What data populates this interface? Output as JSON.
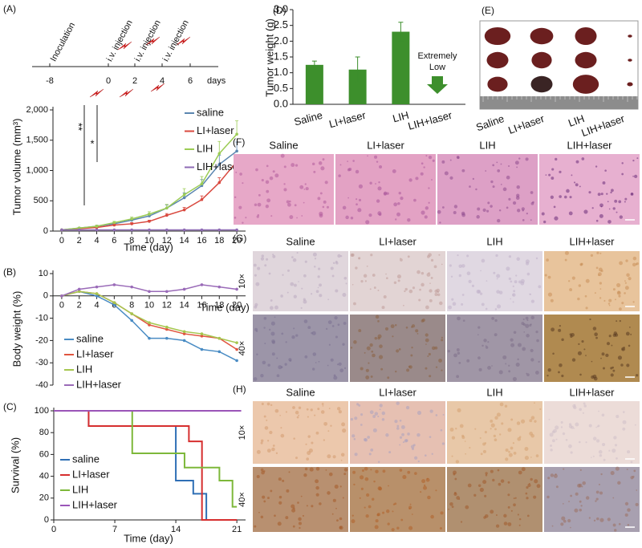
{
  "timeline": {
    "panel": "(A)",
    "events": [
      "Inoculation",
      "i.v. injection",
      "i.v. injection",
      "i.v. injection"
    ],
    "ticks": [
      -8,
      0,
      2,
      4,
      6
    ],
    "unit": "days"
  },
  "chart_data": [
    {
      "type": "line",
      "xlabel": "Time (day)",
      "ylabel": "Tumor volume (mm³)",
      "x": [
        0,
        2,
        4,
        6,
        8,
        10,
        12,
        14,
        16,
        18,
        20
      ],
      "xlim": [
        -1,
        21
      ],
      "xticks": [
        0,
        2,
        4,
        6,
        8,
        10,
        12,
        14,
        16,
        18,
        20
      ],
      "ylim": [
        0,
        2000
      ],
      "yticks": [
        0,
        500,
        {
          "value": 1000,
          "label": "1,000"
        },
        {
          "value": 1500,
          "label": "1,500"
        },
        {
          "value": 2000,
          "label": "2,000"
        }
      ],
      "annotations": [
        "**",
        "*"
      ],
      "legend": "upper right",
      "series": [
        {
          "name": "saline",
          "color": "#5b86b0",
          "values": [
            20,
            50,
            80,
            120,
            180,
            250,
            380,
            550,
            750,
            1100,
            1320
          ],
          "errors": [
            5,
            10,
            15,
            20,
            30,
            40,
            50,
            80,
            100,
            150,
            150
          ]
        },
        {
          "name": "LI+laser",
          "color": "#d9493f",
          "values": [
            20,
            40,
            60,
            100,
            120,
            160,
            260,
            350,
            520,
            800,
            1150
          ],
          "errors": [
            5,
            10,
            10,
            15,
            20,
            20,
            30,
            40,
            60,
            80,
            100
          ]
        },
        {
          "name": "LIH",
          "color": "#9ccc55",
          "values": [
            20,
            50,
            80,
            140,
            200,
            280,
            380,
            600,
            780,
            1280,
            1600
          ],
          "errors": [
            5,
            10,
            15,
            20,
            30,
            40,
            60,
            100,
            120,
            200,
            220
          ]
        },
        {
          "name": "LIH+laser",
          "color": "#8e6bb4",
          "values": [
            20,
            20,
            20,
            20,
            20,
            20,
            20,
            20,
            20,
            20,
            20
          ]
        }
      ]
    },
    {
      "type": "line",
      "panel": "(B)",
      "xlabel": "Time (day)",
      "ylabel": "Body weight (%)",
      "x": [
        0,
        2,
        4,
        6,
        8,
        10,
        12,
        14,
        16,
        18,
        20
      ],
      "xlim": [
        -1,
        21
      ],
      "xticks": [
        0,
        2,
        4,
        6,
        8,
        10,
        12,
        14,
        16,
        18,
        20
      ],
      "ylim": [
        -40,
        10
      ],
      "yticks": [
        -40,
        -30,
        -20,
        -10,
        0,
        10
      ],
      "legend": "lower left",
      "series": [
        {
          "name": "saline",
          "color": "#4a8cc4",
          "values": [
            0,
            2,
            0,
            -4,
            -11,
            -19,
            -19,
            -20,
            -24,
            -25,
            -29
          ]
        },
        {
          "name": "LI+laser",
          "color": "#e0553f",
          "values": [
            0,
            2,
            1,
            -3,
            -8,
            -13,
            -15,
            -17,
            -18,
            -19,
            -24
          ]
        },
        {
          "name": "LIH",
          "color": "#a6c74f",
          "values": [
            0,
            2,
            1,
            -3,
            -8,
            -12,
            -14,
            -16,
            -17,
            -19,
            -21
          ]
        },
        {
          "name": "LIH+laser",
          "color": "#9a6bb8",
          "values": [
            0,
            3,
            4,
            5,
            4,
            2,
            2,
            3,
            5,
            4,
            3
          ]
        }
      ]
    },
    {
      "type": "line",
      "step": true,
      "panel": "(C)",
      "xlabel": "Time (day)",
      "ylabel": "Survival (%)",
      "xlim": [
        0,
        22
      ],
      "xticks": [
        0,
        7,
        14,
        21
      ],
      "ylim": [
        0,
        100
      ],
      "yticks": [
        0,
        20,
        40,
        60,
        80,
        100
      ],
      "legend": "lower left",
      "series": [
        {
          "name": "saline",
          "color": "#2f6fb5",
          "x": [
            0,
            4,
            4,
            14,
            14,
            16,
            16,
            17.5,
            17.5
          ],
          "values": [
            100,
            100,
            86,
            86,
            36,
            36,
            24,
            24,
            0
          ]
        },
        {
          "name": "LI+laser",
          "color": "#d62f2f",
          "x": [
            0,
            4,
            4,
            15.5,
            15.5,
            17,
            17,
            21
          ],
          "values": [
            100,
            100,
            86,
            86,
            72,
            72,
            0,
            0
          ]
        },
        {
          "name": "LIH",
          "color": "#7db83a",
          "x": [
            0,
            9,
            9,
            15,
            15,
            19,
            19,
            20.5,
            20.5,
            21
          ],
          "values": [
            100,
            100,
            61,
            61,
            48,
            48,
            36,
            36,
            12,
            12
          ]
        },
        {
          "name": "LIH+laser",
          "color": "#9a55b8",
          "x": [
            0,
            21.5
          ],
          "values": [
            100,
            100
          ]
        }
      ]
    },
    {
      "type": "bar",
      "panel": "(D)",
      "ylabel": "Tumor weight  (g)",
      "categories": [
        "Saline",
        "LI+laser",
        "LIH",
        "LIH+laser"
      ],
      "values": [
        1.25,
        1.1,
        2.3,
        null
      ],
      "errors": [
        0.12,
        0.4,
        0.3,
        null
      ],
      "color": "#3d8f2c",
      "ylim": [
        0,
        3
      ],
      "yticks": [
        {
          "value": 0,
          "label": "0.0"
        },
        0.5,
        {
          "value": 1,
          "label": "1.0"
        },
        1.5,
        {
          "value": 2,
          "label": "2.0"
        },
        2.5,
        {
          "value": 3,
          "label": "3.0"
        }
      ],
      "annotations": [
        "Extremely",
        "Low"
      ]
    }
  ],
  "photo": {
    "panel": "(E)",
    "labels": [
      "Saline",
      "LI+laser",
      "LIH",
      "LIH+laser"
    ]
  },
  "histology": [
    {
      "panel": "(F)",
      "columns": [
        "Saline",
        "LI+laser",
        "LIH",
        "LIH+laser"
      ]
    },
    {
      "panel": "(G)",
      "columns": [
        "Saline",
        "LI+laser",
        "LIH",
        "LIH+laser"
      ],
      "rows": [
        "10×",
        "40×"
      ]
    },
    {
      "panel": "(H)",
      "columns": [
        "Saline",
        "LI+laser",
        "LIH",
        "LIH+laser"
      ],
      "rows": [
        "10×",
        "40×"
      ]
    }
  ]
}
